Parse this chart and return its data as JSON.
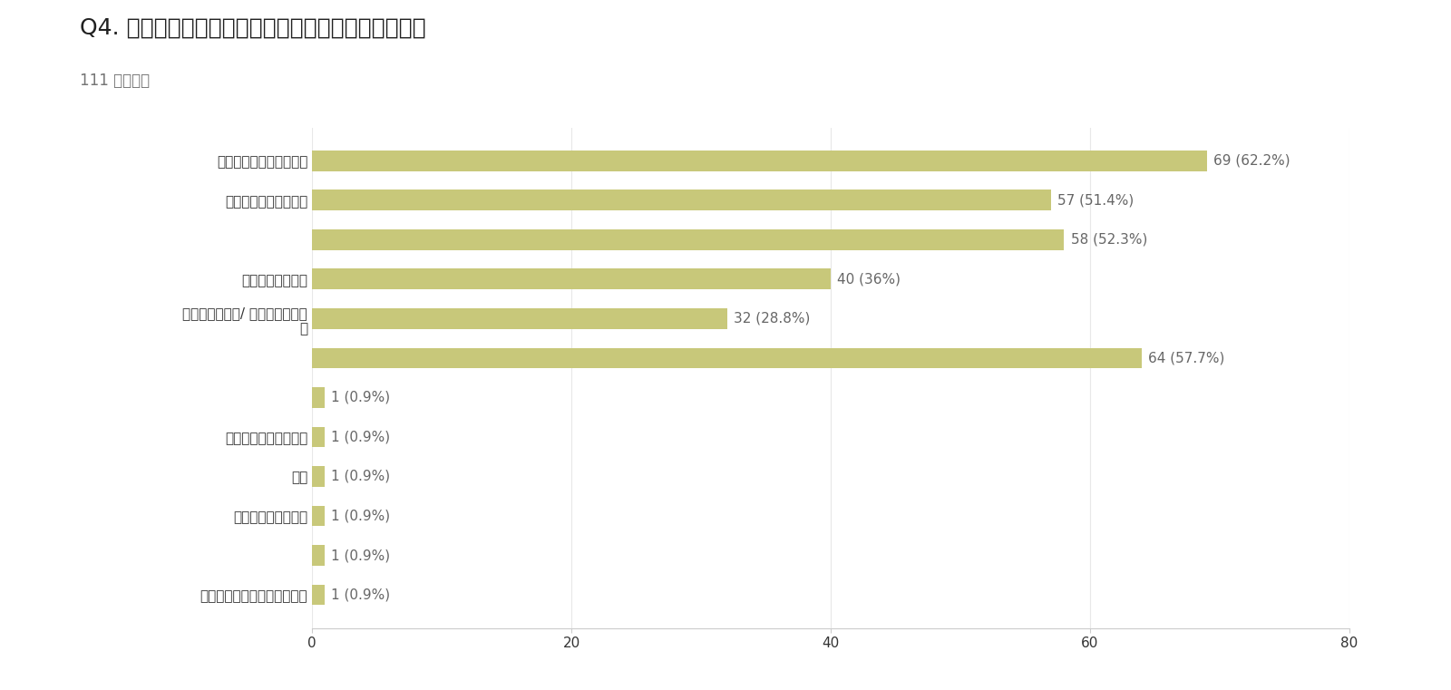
{
  "title": "Q4. 英語を学ぶ理由を教えてください（複数回答可）",
  "subtitle": "111 件の回答",
  "bar_data": [
    [
      "仕事や就活のために必要",
      69,
      "69 (62.2%)"
    ],
    [
      "海外旅行を楽しみたい",
      57,
      "57 (51.4%)"
    ],
    [
      "",
      58,
      "58 (52.3%)"
    ],
    [
      "単純にかっこいい",
      40,
      "40 (36%)"
    ],
    [
      "世界観が変わる/ 可能性を広げた\nい",
      32,
      "32 (28.8%)"
    ],
    [
      "",
      64,
      "64 (57.7%)"
    ],
    [
      "",
      1,
      "1 (0.9%)"
    ],
    [
      "授業で必須だったから",
      1,
      "1 (0.9%)"
    ],
    [
      "授業",
      1,
      "1 (0.9%)"
    ],
    [
      "暇な時間が多いから",
      1,
      "1 (0.9%)"
    ],
    [
      "",
      1,
      "1 (0.9%)"
    ],
    [
      "特に伸ばしたいとは思わない",
      1,
      "1 (0.9%)"
    ]
  ],
  "bar_color": "#c8c87a",
  "background_color": "#ffffff",
  "xlim": [
    0,
    80
  ],
  "xticks": [
    0,
    20,
    40,
    60,
    80
  ],
  "title_fontsize": 18,
  "subtitle_fontsize": 12,
  "value_label_fontsize": 11,
  "tick_fontsize": 11,
  "label_color": "#666666",
  "grid_color": "#e8e8e8",
  "title_color": "#212121",
  "subtitle_color": "#757575",
  "spine_color": "#cccccc"
}
